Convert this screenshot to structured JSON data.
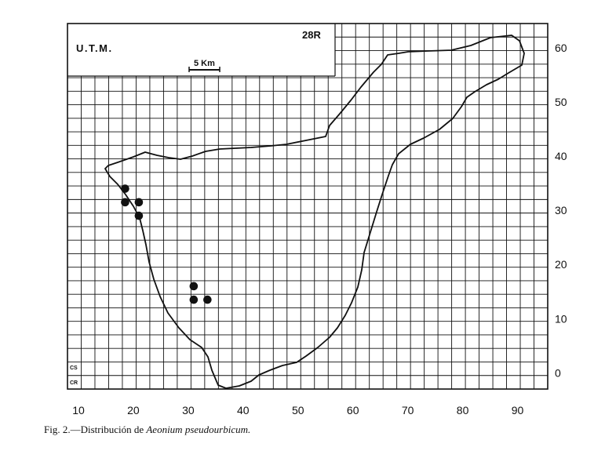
{
  "figure": {
    "utm_label": "U.T.M.",
    "zone_label": "28R",
    "scale_label": "5 Km",
    "caption_prefix": "Fig. 2.—Distribución de ",
    "caption_species": "Aeonium pseudourbicum.",
    "cell_labels": [
      "CS",
      "CR"
    ]
  },
  "axes": {
    "x_ticks": [
      "10",
      "20",
      "30",
      "40",
      "50",
      "60",
      "70",
      "80",
      "90"
    ],
    "y_ticks": [
      "60",
      "50",
      "40",
      "30",
      "20",
      "10",
      "0"
    ]
  },
  "points": [
    {
      "x": 18.5,
      "y": 34
    },
    {
      "x": 18.5,
      "y": 31.5
    },
    {
      "x": 21,
      "y": 31.5
    },
    {
      "x": 21,
      "y": 29
    },
    {
      "x": 31,
      "y": 16
    },
    {
      "x": 31,
      "y": 13.5
    },
    {
      "x": 33.5,
      "y": 13.5
    }
  ],
  "colors": {
    "ink": "#111111",
    "background": "#ffffff"
  }
}
